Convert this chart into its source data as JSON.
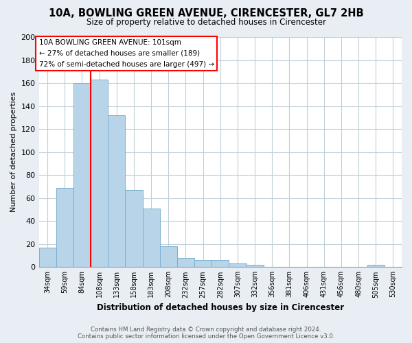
{
  "title": "10A, BOWLING GREEN AVENUE, CIRENCESTER, GL7 2HB",
  "subtitle": "Size of property relative to detached houses in Cirencester",
  "xlabel": "Distribution of detached houses by size in Cirencester",
  "ylabel": "Number of detached properties",
  "footer_line1": "Contains HM Land Registry data © Crown copyright and database right 2024.",
  "footer_line2": "Contains public sector information licensed under the Open Government Licence v3.0.",
  "bar_labels": [
    "34sqm",
    "59sqm",
    "84sqm",
    "108sqm",
    "133sqm",
    "158sqm",
    "183sqm",
    "208sqm",
    "232sqm",
    "257sqm",
    "282sqm",
    "307sqm",
    "332sqm",
    "356sqm",
    "381sqm",
    "406sqm",
    "431sqm",
    "456sqm",
    "480sqm",
    "505sqm",
    "530sqm"
  ],
  "bar_heights": [
    17,
    69,
    160,
    163,
    132,
    67,
    51,
    18,
    8,
    6,
    6,
    3,
    2,
    0,
    0,
    0,
    0,
    0,
    0,
    2,
    0
  ],
  "bar_color": "#b8d4e8",
  "bar_edge_color": "#7ab0cf",
  "vline_x": 3,
  "vline_color": "red",
  "annotation_title": "10A BOWLING GREEN AVENUE: 101sqm",
  "annotation_line2": "← 27% of detached houses are smaller (189)",
  "annotation_line3": "72% of semi-detached houses are larger (497) →",
  "annotation_box_color": "white",
  "annotation_box_edge": "red",
  "ylim": [
    0,
    200
  ],
  "yticks": [
    0,
    20,
    40,
    60,
    80,
    100,
    120,
    140,
    160,
    180,
    200
  ],
  "background_color": "#e8eef4",
  "plot_background_color": "white",
  "grid_color": "#c0cfd8"
}
